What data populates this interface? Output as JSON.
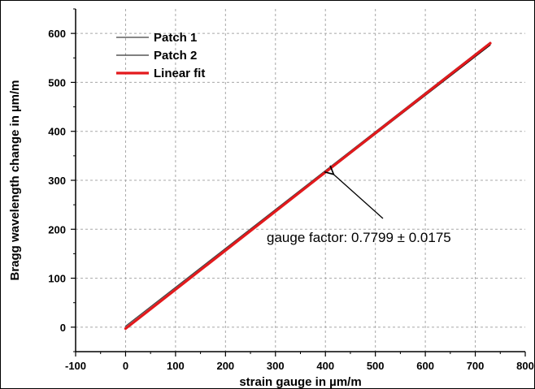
{
  "chart_data": {
    "type": "line",
    "xlabel": "strain gauge in µm/m",
    "ylabel": "Bragg wavelength change in µm/m",
    "xlim": [
      -100,
      800
    ],
    "ylim": [
      -50,
      650
    ],
    "xticks": [
      -100,
      0,
      100,
      200,
      300,
      400,
      500,
      600,
      700,
      800
    ],
    "yticks": [
      0,
      100,
      200,
      300,
      400,
      500,
      600
    ],
    "xtick_labels": [
      "-100",
      "0",
      "100",
      "200",
      "300",
      "400",
      "500",
      "600",
      "700",
      "800"
    ],
    "ytick_labels": [
      "0",
      "100",
      "200",
      "300",
      "400",
      "500",
      "600"
    ],
    "grid": true,
    "legend_position": "top-left",
    "series": [
      {
        "name": "Patch 1",
        "color": "#404040",
        "x": [
          0,
          730
        ],
        "y": [
          2,
          582
        ]
      },
      {
        "name": "Patch 2",
        "color": "#000000",
        "x": [
          0,
          730
        ],
        "y": [
          -2,
          576
        ]
      },
      {
        "name": "Linear fit",
        "color": "#e3191c",
        "x": [
          0,
          730
        ],
        "y": [
          -3,
          580
        ]
      }
    ],
    "annotation": {
      "text": "gauge factor: 0.7799 ± 0.0175",
      "arrow_target": {
        "x": 410,
        "y": 322
      }
    }
  }
}
